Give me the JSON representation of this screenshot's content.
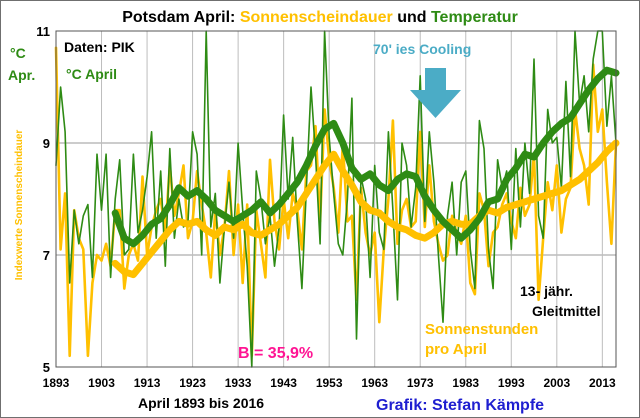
{
  "chart_data": {
    "type": "line",
    "title_prefix": "Potsdam April: ",
    "title_sun": "Sonnenscheindauer",
    "title_mid": " und ",
    "title_temp": "Temperatur",
    "source_label": "Daten: PIK",
    "y_unit_label_1": "°C",
    "y_unit_label_2": "Apr.",
    "temp_legend": "°C April",
    "sun_axis_label": "Indexwerte Sonnenscheindauer",
    "annotation_cooling": "70' ies Cooling",
    "annotation_smooth_1": "13- jähr.",
    "annotation_smooth_2": "Gleitmittel",
    "annotation_sun_1": "Sonnenstunden",
    "annotation_sun_2": "pro April",
    "annotation_b": "B = 35,9%",
    "xlabel": "April 1893 bis 2016",
    "credit": "Grafik: Stefan Kämpfe",
    "xlim": [
      1893,
      2016
    ],
    "ylim": [
      5,
      11
    ],
    "y_ticks": [
      5,
      7,
      9,
      11
    ],
    "x_ticks": [
      1893,
      1903,
      1913,
      1923,
      1933,
      1943,
      1953,
      1963,
      1973,
      1983,
      1993,
      2003,
      2013
    ],
    "grid": true,
    "colors": {
      "temperature": "#2e8b14",
      "sunshine": "#ffc000",
      "cooling_text": "#4bacc6",
      "arrow": "#4bacc6",
      "b_text": "#ff1493",
      "credit": "#1f1fd0"
    },
    "series": [
      {
        "name": "°C April",
        "values": [
          8.6,
          10.0,
          9.2,
          6.5,
          7.8,
          7.2,
          7.7,
          7.9,
          6.6,
          8.8,
          7.8,
          8.8,
          6.6,
          8.0,
          8.7,
          7.0,
          7.1,
          8.8,
          7.4,
          7.8,
          8.4,
          9.2,
          7.3,
          8.5,
          6.8,
          8.9,
          7.3,
          8.0,
          7.5,
          7.6,
          9.2,
          8.8,
          7.0,
          11.0,
          7.5,
          8.1,
          6.5,
          7.5,
          8.3,
          7.3,
          9.0,
          7.8,
          6.8,
          5.0,
          8.5,
          8.0,
          7.2,
          7.7,
          6.8,
          7.5,
          9.5,
          8.0,
          9.1,
          7.6,
          6.4,
          8.2,
          10.0,
          8.8,
          7.2,
          11.0,
          9.1,
          8.1,
          7.2,
          7.0,
          8.0,
          9.8,
          5.5,
          8.4,
          8.0,
          6.6,
          8.6,
          7.4,
          7.1,
          9.2,
          7.8,
          6.2,
          9.0,
          8.6,
          7.5,
          8.2,
          10.2,
          7.6,
          9.2,
          8.3,
          7.0,
          5.8,
          7.7,
          8.3,
          7.0,
          8.3,
          8.5,
          7.1,
          6.4,
          9.4,
          8.9,
          7.1,
          6.4,
          8.7,
          8.2,
          8.5,
          7.1,
          8.9,
          7.5,
          9.0,
          8.1,
          10.5,
          7.7,
          7.3,
          9.6,
          9.0,
          9.1,
          8.2,
          10.1,
          8.4,
          11.0,
          9.7,
          10.2,
          9.2,
          10.5,
          11.0,
          11.0,
          9.3,
          10.2,
          9.0
        ]
      },
      {
        "name": "Sonnenstunden pro April",
        "values": [
          10.7,
          7.1,
          8.1,
          5.2,
          7.8,
          7.3,
          7.1,
          5.2,
          6.5,
          7.0,
          6.9,
          7.2,
          6.8,
          7.8,
          7.8,
          6.4,
          7.0,
          7.2,
          6.9,
          8.4,
          7.0,
          7.5,
          7.8,
          8.0,
          7.4,
          8.6,
          7.7,
          8.1,
          8.6,
          7.3,
          7.6,
          8.5,
          7.9,
          7.4,
          6.6,
          7.8,
          7.0,
          7.5,
          8.5,
          7.0,
          7.9,
          6.5,
          7.9,
          5.2,
          7.8,
          7.2,
          6.6,
          8.7,
          7.6,
          7.1,
          8.0,
          7.3,
          8.1,
          7.8,
          7.1,
          8.5,
          8.6,
          9.3,
          7.6,
          9.6,
          8.7,
          8.2,
          7.4,
          9.0,
          7.6,
          7.7,
          6.2,
          8.2,
          7.4,
          7.0,
          7.4,
          5.8,
          7.1,
          8.0,
          9.4,
          7.2,
          7.8,
          8.0,
          7.5,
          7.6,
          9.2,
          7.5,
          8.6,
          7.6,
          7.2,
          6.9,
          7.0,
          7.7,
          7.4,
          7.2,
          7.7,
          6.5,
          6.3,
          8.1,
          7.8,
          6.8,
          7.4,
          7.5,
          7.9,
          8.1,
          7.6,
          7.3,
          8.2,
          7.7,
          7.9,
          8.8,
          6.2,
          7.3,
          8.3,
          7.8,
          8.6,
          7.4,
          8.0,
          8.2,
          9.6,
          8.9,
          8.6,
          7.9,
          10.4,
          9.2,
          9.6,
          8.3,
          7.2,
          9.0
        ]
      },
      {
        "name": "13- jähr. Gleitmittel (Temperatur)",
        "x": [
          1906,
          1908,
          1910,
          1912,
          1914,
          1916,
          1918,
          1920,
          1922,
          1924,
          1926,
          1928,
          1930,
          1932,
          1934,
          1936,
          1938,
          1940,
          1942,
          1944,
          1946,
          1948,
          1950,
          1952,
          1954,
          1956,
          1958,
          1960,
          1962,
          1964,
          1966,
          1968,
          1970,
          1972,
          1974,
          1976,
          1978,
          1980,
          1982,
          1984,
          1986,
          1988,
          1990,
          1992,
          1994,
          1996,
          1998,
          2000,
          2002,
          2004,
          2006,
          2008,
          2010,
          2012,
          2014,
          2016
        ],
        "values": [
          7.75,
          7.3,
          7.2,
          7.35,
          7.55,
          7.65,
          7.9,
          8.2,
          8.05,
          8.15,
          8.0,
          7.8,
          7.7,
          7.6,
          7.7,
          7.8,
          7.95,
          7.75,
          7.9,
          8.1,
          8.3,
          8.6,
          8.95,
          9.25,
          9.35,
          9.0,
          8.55,
          8.35,
          8.45,
          8.25,
          8.15,
          8.35,
          8.45,
          8.4,
          8.05,
          7.8,
          7.6,
          7.45,
          7.3,
          7.45,
          7.65,
          7.95,
          8.0,
          8.35,
          8.55,
          8.8,
          8.75,
          9.0,
          9.2,
          9.35,
          9.45,
          9.7,
          9.95,
          10.15,
          10.3,
          10.25
        ]
      },
      {
        "name": "13- jähr. Gleitmittel (Sonnenscheindauer)",
        "x": [
          1906,
          1908,
          1910,
          1912,
          1914,
          1916,
          1918,
          1920,
          1922,
          1924,
          1926,
          1928,
          1930,
          1932,
          1934,
          1936,
          1938,
          1940,
          1942,
          1944,
          1946,
          1948,
          1950,
          1952,
          1954,
          1956,
          1958,
          1960,
          1962,
          1964,
          1966,
          1968,
          1970,
          1972,
          1974,
          1976,
          1978,
          1980,
          1982,
          1984,
          1986,
          1988,
          1990,
          1992,
          1994,
          1996,
          1998,
          2000,
          2002,
          2004,
          2006,
          2008,
          2010,
          2012,
          2014,
          2016
        ],
        "values": [
          6.85,
          6.7,
          6.65,
          6.85,
          7.05,
          7.25,
          7.45,
          7.6,
          7.55,
          7.6,
          7.45,
          7.35,
          7.5,
          7.45,
          7.55,
          7.4,
          7.35,
          7.45,
          7.55,
          7.7,
          7.85,
          8.1,
          8.35,
          8.6,
          8.8,
          8.5,
          8.25,
          7.95,
          7.8,
          7.75,
          7.6,
          7.5,
          7.45,
          7.35,
          7.3,
          7.4,
          7.55,
          7.6,
          7.55,
          7.55,
          7.7,
          7.8,
          7.75,
          7.85,
          7.9,
          7.95,
          8.0,
          8.05,
          8.1,
          8.15,
          8.25,
          8.35,
          8.5,
          8.65,
          8.85,
          9.0
        ]
      }
    ]
  }
}
